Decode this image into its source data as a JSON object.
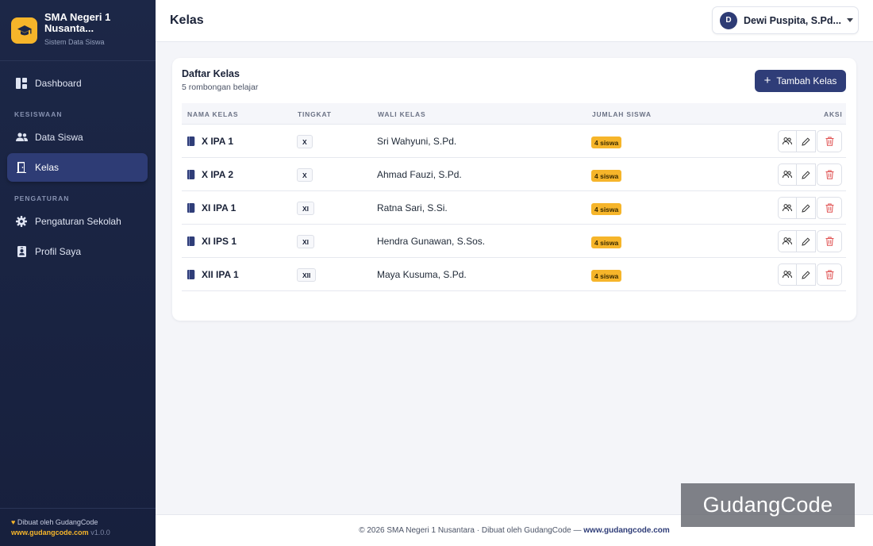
{
  "sidebar": {
    "brand_name": "SMA Negeri 1 Nusanta...",
    "brand_sub": "Sistem Data Siswa",
    "items": [
      {
        "label": "Dashboard",
        "icon": "dashboard-icon"
      },
      {
        "label": "Data Siswa",
        "icon": "users-icon"
      },
      {
        "label": "Kelas",
        "icon": "door-icon",
        "active": true
      },
      {
        "label": "Pengaturan Sekolah",
        "icon": "gear-icon"
      },
      {
        "label": "Profil Saya",
        "icon": "id-badge-icon"
      }
    ],
    "sections": {
      "kesiswaan": "KESISWAAN",
      "pengaturan": "PENGATURAN"
    },
    "credit": "Dibuat oleh GudangCode",
    "credit_link": "www.gudangcode.com",
    "version": "v1.0.0"
  },
  "header": {
    "title": "Kelas",
    "user_initial": "D",
    "user_name": "Dewi Puspita, S.Pd..."
  },
  "card": {
    "title": "Daftar Kelas",
    "subtitle": "5 rombongan belajar",
    "add_button": "Tambah Kelas",
    "columns": [
      "NAMA KELAS",
      "TINGKAT",
      "WALI KELAS",
      "JUMLAH SISWA",
      "AKSI"
    ],
    "rows": [
      {
        "name": "X IPA 1",
        "level": "X",
        "wali": "Sri Wahyuni, S.Pd.",
        "count": "4 siswa"
      },
      {
        "name": "X IPA 2",
        "level": "X",
        "wali": "Ahmad Fauzi, S.Pd.",
        "count": "4 siswa"
      },
      {
        "name": "XI IPA 1",
        "level": "XI",
        "wali": "Ratna Sari, S.Si.",
        "count": "4 siswa"
      },
      {
        "name": "XI IPS 1",
        "level": "XI",
        "wali": "Hendra Gunawan, S.Sos.",
        "count": "4 siswa"
      },
      {
        "name": "XII IPA 1",
        "level": "XII",
        "wali": "Maya Kusuma, S.Pd.",
        "count": "4 siswa"
      }
    ]
  },
  "footer": {
    "text": "© 2026 SMA Negeri 1 Nusantara · Dibuat oleh GudangCode — ",
    "link": "www.gudangcode.com"
  },
  "watermark": "GudangCode",
  "colors": {
    "sidebar": "#1c2747",
    "accent": "#2f3d78",
    "badge": "#f6b52a",
    "danger": "#e05252"
  }
}
